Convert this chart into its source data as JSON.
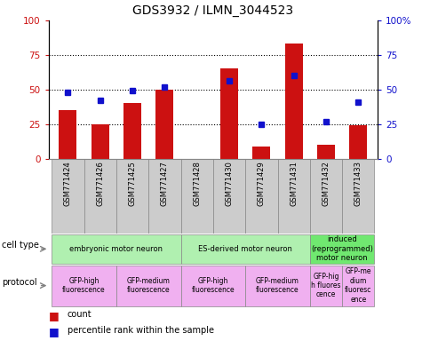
{
  "title": "GDS3932 / ILMN_3044523",
  "samples": [
    "GSM771424",
    "GSM771426",
    "GSM771425",
    "GSM771427",
    "GSM771428",
    "GSM771430",
    "GSM771429",
    "GSM771431",
    "GSM771432",
    "GSM771433"
  ],
  "counts": [
    35,
    25,
    40,
    50,
    0,
    65,
    9,
    83,
    10,
    24
  ],
  "percentiles": [
    48,
    42,
    49,
    52,
    null,
    56,
    25,
    60,
    27,
    41
  ],
  "cell_type_groups": [
    {
      "label": "embryonic motor neuron",
      "start": 0,
      "end": 3,
      "color": "#b0f0b0"
    },
    {
      "label": "ES-derived motor neuron",
      "start": 4,
      "end": 7,
      "color": "#b0f0b0"
    },
    {
      "label": "induced\n(reprogrammed)\nmotor neuron",
      "start": 8,
      "end": 9,
      "color": "#70e870"
    }
  ],
  "protocol_groups": [
    {
      "label": "GFP-high\nfluorescence",
      "start": 0,
      "end": 1,
      "color": "#f0b0f0"
    },
    {
      "label": "GFP-medium\nfluorescence",
      "start": 2,
      "end": 3,
      "color": "#f0b0f0"
    },
    {
      "label": "GFP-high\nfluorescence",
      "start": 4,
      "end": 5,
      "color": "#f0b0f0"
    },
    {
      "label": "GFP-medium\nfluorescence",
      "start": 6,
      "end": 7,
      "color": "#f0b0f0"
    },
    {
      "label": "GFP-hig\nh fluores\ncence",
      "start": 8,
      "end": 8,
      "color": "#f0b0f0"
    },
    {
      "label": "GFP-me\ndium\nfluoresc\nence",
      "start": 9,
      "end": 9,
      "color": "#f0b0f0"
    }
  ],
  "bar_color": "#cc1111",
  "dot_color": "#1111cc",
  "ylim": [
    0,
    100
  ],
  "yticks": [
    0,
    25,
    50,
    75,
    100
  ],
  "grid_lines": [
    25,
    50,
    75
  ],
  "left_axis_color": "#cc1111",
  "right_axis_color": "#1111cc",
  "sample_box_color": "#cccccc",
  "sample_box_edge": "#888888",
  "background_color": "#ffffff"
}
